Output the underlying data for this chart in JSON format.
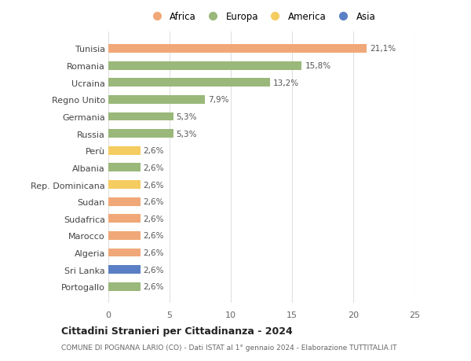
{
  "categories": [
    "Portogallo",
    "Sri Lanka",
    "Algeria",
    "Marocco",
    "Sudafrica",
    "Sudan",
    "Rep. Dominicana",
    "Albania",
    "Perù",
    "Russia",
    "Germania",
    "Regno Unito",
    "Ucraina",
    "Romania",
    "Tunisia"
  ],
  "values": [
    2.6,
    2.6,
    2.6,
    2.6,
    2.6,
    2.6,
    2.6,
    2.6,
    2.6,
    5.3,
    5.3,
    7.9,
    13.2,
    15.8,
    21.1
  ],
  "colors": [
    "#9ab87a",
    "#5b7fc4",
    "#f0a878",
    "#f0a878",
    "#f0a878",
    "#f0a878",
    "#f5cc60",
    "#9ab87a",
    "#f5cc60",
    "#9ab87a",
    "#9ab87a",
    "#9ab87a",
    "#9ab87a",
    "#9ab87a",
    "#f0a878"
  ],
  "labels": [
    "2,6%",
    "2,6%",
    "2,6%",
    "2,6%",
    "2,6%",
    "2,6%",
    "2,6%",
    "2,6%",
    "2,6%",
    "5,3%",
    "5,3%",
    "7,9%",
    "13,2%",
    "15,8%",
    "21,1%"
  ],
  "legend": [
    {
      "label": "Africa",
      "color": "#f0a878"
    },
    {
      "label": "Europa",
      "color": "#9ab87a"
    },
    {
      "label": "America",
      "color": "#f5cc60"
    },
    {
      "label": "Asia",
      "color": "#5b7fc4"
    }
  ],
  "title": "Cittadini Stranieri per Cittadinanza - 2024",
  "subtitle": "COMUNE DI POGNANA LARIO (CO) - Dati ISTAT al 1° gennaio 2024 - Elaborazione TUTTITALIA.IT",
  "xlim": [
    0,
    25
  ],
  "xticks": [
    0,
    5,
    10,
    15,
    20,
    25
  ],
  "background_color": "#ffffff",
  "grid_color": "#e0e0e0"
}
